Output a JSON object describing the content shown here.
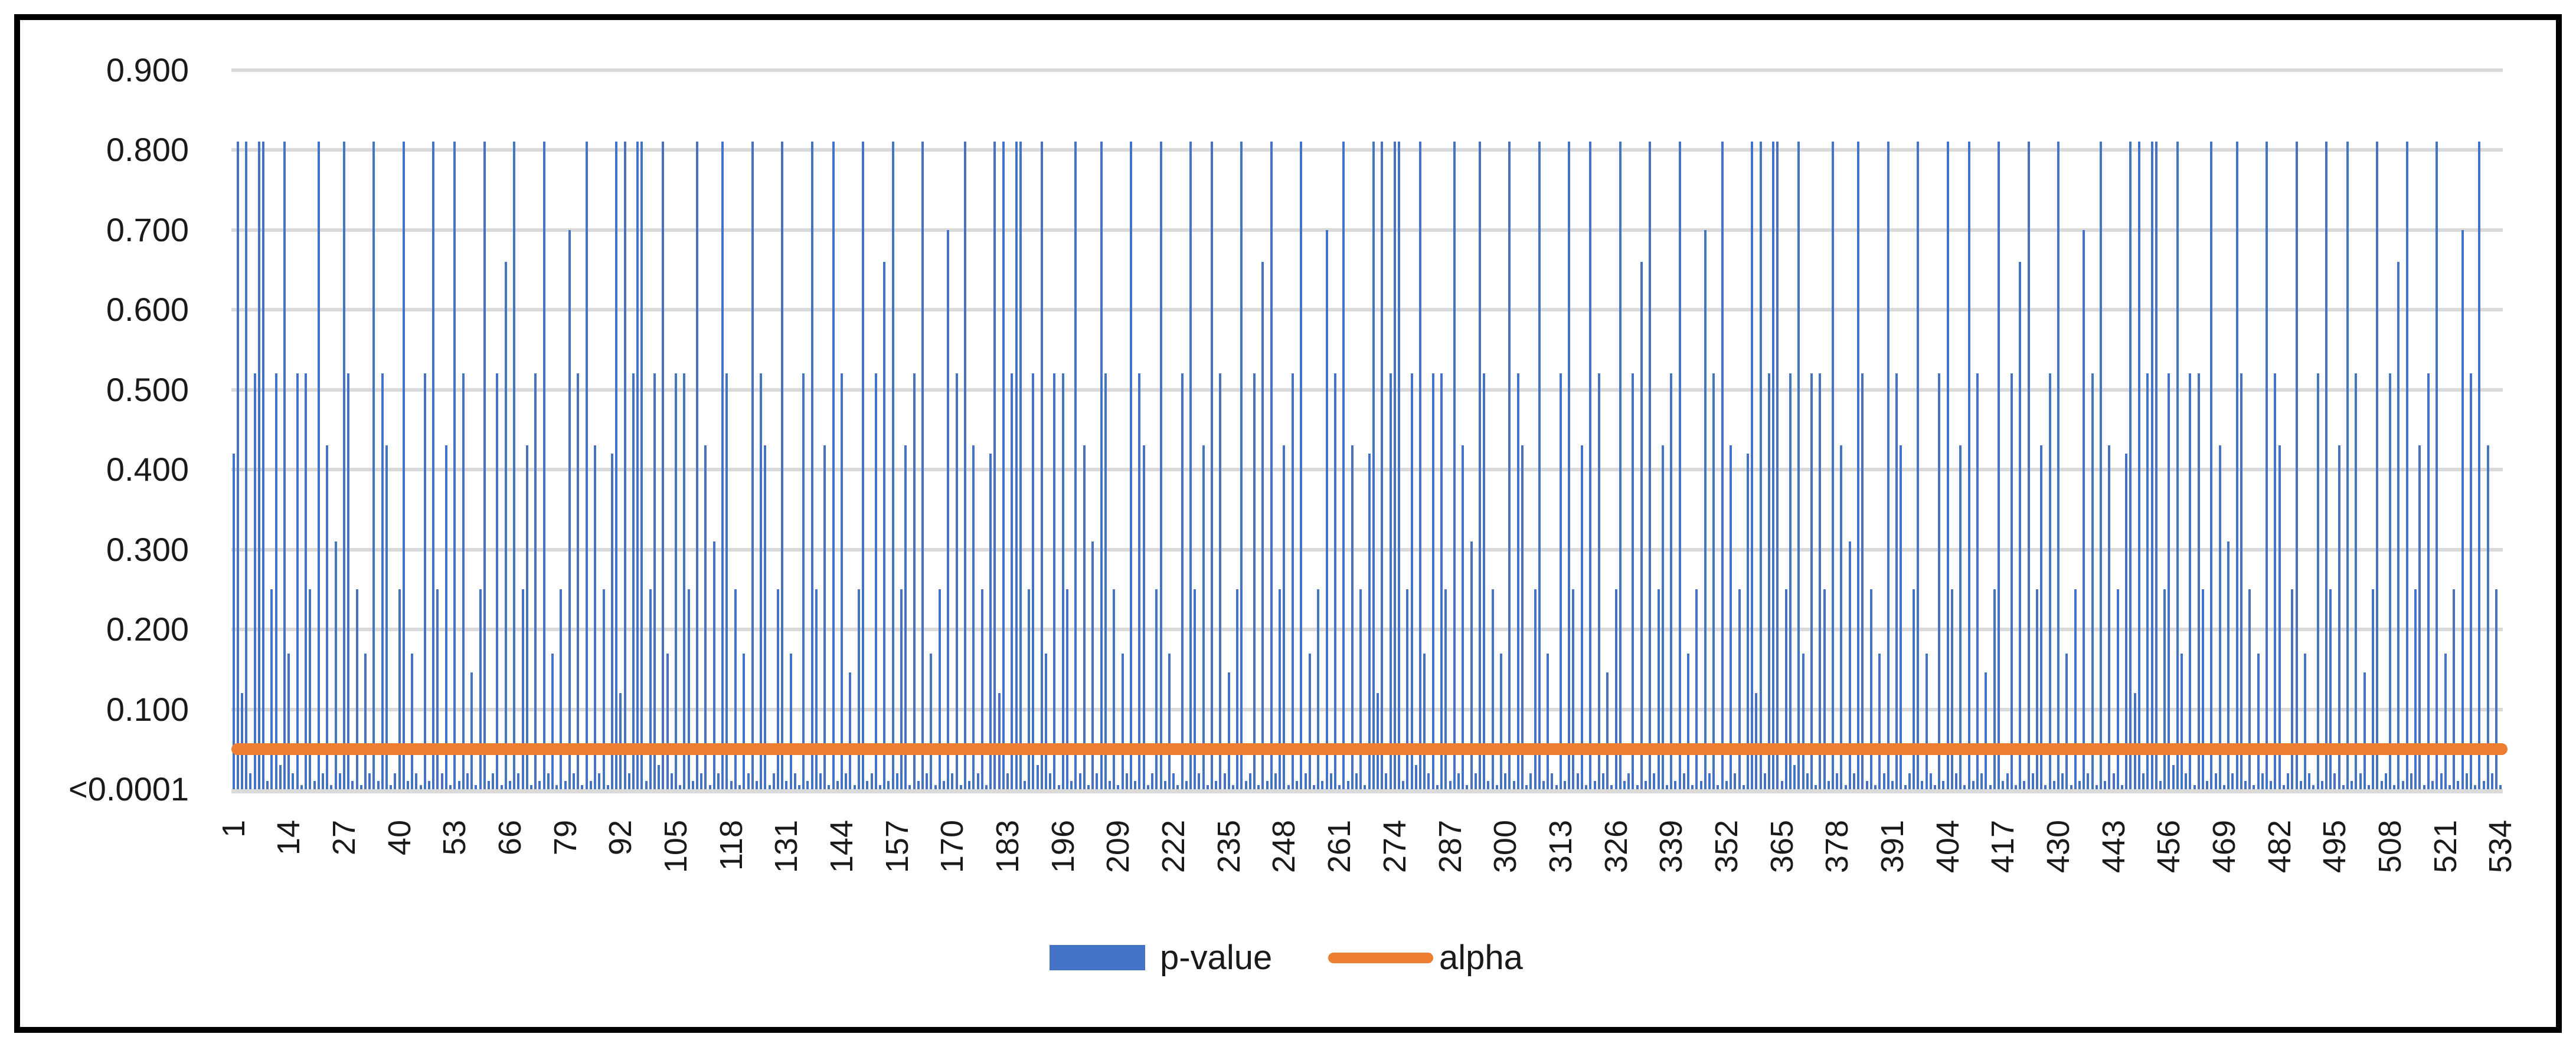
{
  "legend": {
    "pvalue_label": "p-value",
    "alpha_label": "alpha"
  },
  "chart_data": {
    "type": "bar",
    "title": "",
    "xlabel": "",
    "ylabel": "",
    "ylim": [
      0,
      0.95
    ],
    "grid": "horizontal",
    "legend_position": "bottom-center",
    "colors": {
      "pvalue_bar": "#4472C4",
      "alpha_line": "#ED7D31",
      "gridline": "#D9D9D9",
      "text": "#1a1a1a",
      "border": "#000000"
    },
    "y_ticks": [
      {
        "label": "0.900",
        "value": 0.9
      },
      {
        "label": "0.800",
        "value": 0.8
      },
      {
        "label": "0.700",
        "value": 0.7
      },
      {
        "label": "0.600",
        "value": 0.6
      },
      {
        "label": "0.500",
        "value": 0.5
      },
      {
        "label": "0.400",
        "value": 0.4
      },
      {
        "label": "0.300",
        "value": 0.3
      },
      {
        "label": "0.200",
        "value": 0.2
      },
      {
        "label": "0.100",
        "value": 0.1
      },
      {
        "label": "<0.0001",
        "value": 0
      }
    ],
    "x_tick_labels": [
      "1",
      "14",
      "27",
      "40",
      "53",
      "66",
      "79",
      "92",
      "105",
      "118",
      "131",
      "144",
      "157",
      "170",
      "183",
      "196",
      "209",
      "222",
      "235",
      "248",
      "261",
      "274",
      "287",
      "300",
      "313",
      "326",
      "339",
      "352",
      "365",
      "378",
      "391",
      "404",
      "417",
      "430",
      "443",
      "456",
      "469",
      "482",
      "495",
      "508",
      "521",
      "534"
    ],
    "x_tick_step": 13,
    "categories_count": 534,
    "alpha_line": {
      "name": "alpha",
      "value": 0.05
    },
    "series": [
      {
        "name": "p-value",
        "values": [
          0.42,
          0.81,
          0.12,
          0.81,
          0.02,
          0.52,
          0.81,
          0.81,
          0.01,
          0.25,
          0.52,
          0.03,
          0.81,
          0.17,
          0.02,
          0.52,
          0.005,
          0.52,
          0.25,
          0.01,
          0.81,
          0.02,
          0.43,
          0.005,
          0.31,
          0.02,
          0.81,
          0.52,
          0.01,
          0.25,
          0.005,
          0.17,
          0.02,
          0.81,
          0.01,
          0.52,
          0.43,
          0.005,
          0.02,
          0.25,
          0.81,
          0.01,
          0.17,
          0.02,
          0.005,
          0.52,
          0.01,
          0.81,
          0.25,
          0.02,
          0.43,
          0.005,
          0.81,
          0.01,
          0.52,
          0.02,
          0.146,
          0.005,
          0.25,
          0.81,
          0.01,
          0.02,
          0.52,
          0.005,
          0.66,
          0.01,
          0.81,
          0.02,
          0.25,
          0.43,
          0.005,
          0.52,
          0.01,
          0.81,
          0.02,
          0.17,
          0.005,
          0.25,
          0.01,
          0.7,
          0.02,
          0.52,
          0.005,
          0.81,
          0.01,
          0.43,
          0.02,
          0.25,
          0.005,
          0.42,
          0.81,
          0.12,
          0.81,
          0.02,
          0.52,
          0.81,
          0.81,
          0.01,
          0.25,
          0.52,
          0.03,
          0.81,
          0.17,
          0.02,
          0.52,
          0.005,
          0.52,
          0.25,
          0.01,
          0.81,
          0.02,
          0.43,
          0.005,
          0.31,
          0.02,
          0.81,
          0.52,
          0.01,
          0.25,
          0.005,
          0.17,
          0.02,
          0.81,
          0.01,
          0.52,
          0.43,
          0.005,
          0.02,
          0.25,
          0.81,
          0.01,
          0.17,
          0.02,
          0.005,
          0.52,
          0.01,
          0.81,
          0.25,
          0.02,
          0.43,
          0.005,
          0.81,
          0.01,
          0.52,
          0.02,
          0.146,
          0.005,
          0.25,
          0.81,
          0.01,
          0.02,
          0.52,
          0.005,
          0.66,
          0.01,
          0.81,
          0.02,
          0.25,
          0.43,
          0.005,
          0.52,
          0.01,
          0.81,
          0.02,
          0.17,
          0.005,
          0.25,
          0.01,
          0.7,
          0.02,
          0.52,
          0.005,
          0.81,
          0.01,
          0.43,
          0.02,
          0.25,
          0.005,
          0.42,
          0.81,
          0.12,
          0.81,
          0.02,
          0.52,
          0.81,
          0.81,
          0.01,
          0.25,
          0.52,
          0.03,
          0.81,
          0.17,
          0.02,
          0.52,
          0.005,
          0.52,
          0.25,
          0.01,
          0.81,
          0.02,
          0.43,
          0.005,
          0.31,
          0.02,
          0.81,
          0.52,
          0.01,
          0.25,
          0.005,
          0.17,
          0.02,
          0.81,
          0.01,
          0.52,
          0.43,
          0.005,
          0.02,
          0.25,
          0.81,
          0.01,
          0.17,
          0.02,
          0.005,
          0.52,
          0.01,
          0.81,
          0.25,
          0.02,
          0.43,
          0.005,
          0.81,
          0.01,
          0.52,
          0.02,
          0.146,
          0.005,
          0.25,
          0.81,
          0.01,
          0.02,
          0.52,
          0.005,
          0.66,
          0.01,
          0.81,
          0.02,
          0.25,
          0.43,
          0.005,
          0.52,
          0.01,
          0.81,
          0.02,
          0.17,
          0.005,
          0.25,
          0.01,
          0.7,
          0.02,
          0.52,
          0.005,
          0.81,
          0.01,
          0.43,
          0.02,
          0.25,
          0.005,
          0.42,
          0.81,
          0.12,
          0.81,
          0.02,
          0.52,
          0.81,
          0.81,
          0.01,
          0.25,
          0.52,
          0.03,
          0.81,
          0.17,
          0.02,
          0.52,
          0.005,
          0.52,
          0.25,
          0.01,
          0.81,
          0.02,
          0.43,
          0.005,
          0.31,
          0.02,
          0.81,
          0.52,
          0.01,
          0.25,
          0.005,
          0.17,
          0.02,
          0.81,
          0.01,
          0.52,
          0.43,
          0.005,
          0.02,
          0.25,
          0.81,
          0.01,
          0.17,
          0.02,
          0.005,
          0.52,
          0.01,
          0.81,
          0.25,
          0.02,
          0.43,
          0.005,
          0.81,
          0.01,
          0.52,
          0.02,
          0.146,
          0.005,
          0.25,
          0.81,
          0.01,
          0.02,
          0.52,
          0.005,
          0.66,
          0.01,
          0.81,
          0.02,
          0.25,
          0.43,
          0.005,
          0.52,
          0.01,
          0.81,
          0.02,
          0.17,
          0.005,
          0.25,
          0.01,
          0.7,
          0.02,
          0.52,
          0.005,
          0.81,
          0.01,
          0.43,
          0.02,
          0.25,
          0.005,
          0.42,
          0.81,
          0.12,
          0.81,
          0.02,
          0.52,
          0.81,
          0.81,
          0.01,
          0.25,
          0.52,
          0.03,
          0.81,
          0.17,
          0.02,
          0.52,
          0.005,
          0.52,
          0.25,
          0.01,
          0.81,
          0.02,
          0.43,
          0.005,
          0.31,
          0.02,
          0.81,
          0.52,
          0.01,
          0.25,
          0.005,
          0.17,
          0.02,
          0.81,
          0.01,
          0.52,
          0.43,
          0.005,
          0.02,
          0.25,
          0.81,
          0.01,
          0.17,
          0.02,
          0.005,
          0.52,
          0.01,
          0.81,
          0.25,
          0.02,
          0.43,
          0.005,
          0.81,
          0.01,
          0.52,
          0.02,
          0.146,
          0.005,
          0.25,
          0.81,
          0.01,
          0.02,
          0.52,
          0.005,
          0.66,
          0.01,
          0.81,
          0.02,
          0.25,
          0.43,
          0.005,
          0.52,
          0.01,
          0.81,
          0.02,
          0.17,
          0.005,
          0.25,
          0.01,
          0.7,
          0.02,
          0.52,
          0.005,
          0.81,
          0.01,
          0.43,
          0.02,
          0.25,
          0.005,
          0.42,
          0.81,
          0.12,
          0.81,
          0.02,
          0.52,
          0.81,
          0.81,
          0.01,
          0.25,
          0.52,
          0.03,
          0.81,
          0.17,
          0.02,
          0.52,
          0.005,
          0.52,
          0.25,
          0.01,
          0.81,
          0.02,
          0.43,
          0.005,
          0.31,
          0.02,
          0.81,
          0.52,
          0.01,
          0.25,
          0.005,
          0.17,
          0.02,
          0.81,
          0.01,
          0.52,
          0.43,
          0.005,
          0.02,
          0.25,
          0.81,
          0.01,
          0.17,
          0.02,
          0.005,
          0.52,
          0.01,
          0.81,
          0.25,
          0.02,
          0.43,
          0.005,
          0.81,
          0.01,
          0.52,
          0.02,
          0.146,
          0.005,
          0.25,
          0.81,
          0.01,
          0.02,
          0.52,
          0.005,
          0.66,
          0.01,
          0.81,
          0.02,
          0.25,
          0.43,
          0.005,
          0.52,
          0.01,
          0.81,
          0.02,
          0.17,
          0.005,
          0.25,
          0.01,
          0.7,
          0.02,
          0.52,
          0.005,
          0.81,
          0.01,
          0.43,
          0.02,
          0.25,
          0.005
        ]
      }
    ]
  }
}
